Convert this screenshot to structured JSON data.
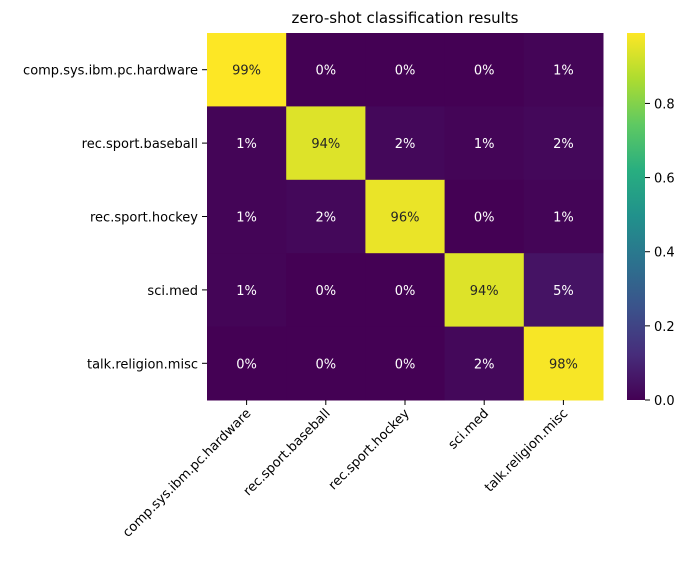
{
  "chart_data": {
    "type": "heatmap",
    "title": "zero-shot classification results",
    "xlabel": "",
    "ylabel": "",
    "categories_x": [
      "comp.sys.ibm.pc.hardware",
      "rec.sport.baseball",
      "rec.sport.hockey",
      "sci.med",
      "talk.religion.misc"
    ],
    "categories_y": [
      "comp.sys.ibm.pc.hardware",
      "rec.sport.baseball",
      "rec.sport.hockey",
      "sci.med",
      "talk.religion.misc"
    ],
    "values": [
      [
        0.99,
        0.0,
        0.0,
        0.0,
        0.01
      ],
      [
        0.01,
        0.94,
        0.02,
        0.01,
        0.02
      ],
      [
        0.01,
        0.02,
        0.96,
        0.0,
        0.01
      ],
      [
        0.01,
        0.0,
        0.0,
        0.94,
        0.05
      ],
      [
        0.0,
        0.0,
        0.0,
        0.02,
        0.98
      ]
    ],
    "cell_labels": [
      [
        "99%",
        "0%",
        "0%",
        "0%",
        "1%"
      ],
      [
        "1%",
        "94%",
        "2%",
        "1%",
        "2%"
      ],
      [
        "1%",
        "2%",
        "96%",
        "0%",
        "1%"
      ],
      [
        "1%",
        "0%",
        "0%",
        "94%",
        "5%"
      ],
      [
        "0%",
        "0%",
        "0%",
        "2%",
        "98%"
      ]
    ],
    "colormap": "viridis",
    "vmin": 0.0,
    "vmax": 0.99,
    "colorbar_ticks": [
      "0.0",
      "0.2",
      "0.4",
      "0.6",
      "0.8"
    ],
    "colorbar_tick_values": [
      0.0,
      0.2,
      0.4,
      0.6,
      0.8
    ]
  }
}
